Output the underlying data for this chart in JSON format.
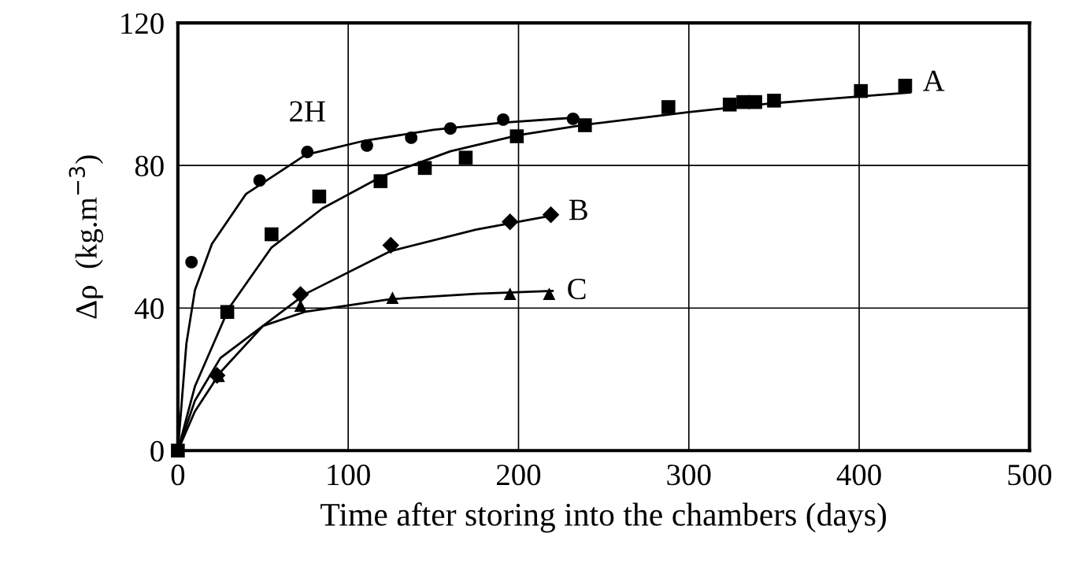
{
  "chart_data": {
    "type": "scatter",
    "xlabel": "Time after storing into the chambers (days)",
    "ylabel": "Δρ  (kg.m$^{−3}$)",
    "xlim": [
      0,
      500
    ],
    "ylim": [
      0,
      120
    ],
    "xticks": [
      0,
      100,
      200,
      300,
      400,
      500
    ],
    "yticks": [
      0,
      40,
      80,
      120
    ],
    "grid": true,
    "series": [
      {
        "marker": "circle",
        "color": "#000000",
        "x": [
          8,
          48,
          76,
          111,
          137,
          160,
          191,
          232
        ],
        "values": [
          52.9,
          75.8,
          83.8,
          85.6,
          87.8,
          90.4,
          92.9,
          93.1
        ]
      },
      {
        "marker": "square",
        "color": "#000000",
        "x": [
          0,
          29,
          55,
          83,
          119,
          145,
          169,
          199,
          239,
          288,
          324,
          332,
          339,
          350,
          401,
          427
        ],
        "values": [
          0,
          38.9,
          60.7,
          71.3,
          75.6,
          79.3,
          82.2,
          88.2,
          91.3,
          96.4,
          97.1,
          97.8,
          97.8,
          98.2,
          100.9,
          102.4
        ]
      },
      {
        "marker": "diamond",
        "color": "#000000",
        "x": [
          23,
          72,
          125,
          195,
          219
        ],
        "values": [
          21.1,
          43.8,
          57.6,
          64.2,
          66.2
        ]
      },
      {
        "marker": "triangle",
        "color": "#000000",
        "x": [
          24,
          72,
          126,
          195,
          218
        ],
        "values": [
          21,
          40.7,
          42.9,
          44,
          44
        ]
      },
      {
        "type": "line",
        "color": "#000000",
        "x": [
          0,
          5,
          10,
          20,
          40,
          75,
          110,
          150,
          190,
          235
        ],
        "values": [
          0,
          30,
          45,
          58,
          72,
          83,
          87,
          90,
          92,
          93.5
        ]
      },
      {
        "type": "line",
        "color": "#000000",
        "x": [
          0,
          10,
          30,
          55,
          85,
          120,
          160,
          200,
          240,
          300,
          350,
          430
        ],
        "values": [
          0,
          18,
          40,
          57,
          68,
          77,
          84,
          88.5,
          91.5,
          95,
          97.5,
          100.5
        ]
      },
      {
        "type": "line",
        "color": "#000000",
        "x": [
          0,
          10,
          25,
          50,
          75,
          125,
          175,
          220
        ],
        "values": [
          0,
          11,
          22,
          35,
          44,
          56,
          62,
          66
        ]
      },
      {
        "type": "line",
        "color": "#000000",
        "x": [
          0,
          10,
          25,
          50,
          75,
          125,
          175,
          220
        ],
        "values": [
          0,
          14,
          26,
          35,
          39,
          42.5,
          44,
          44.8
        ]
      }
    ],
    "annotations": [
      {
        "text": "2H",
        "x": 76,
        "y": 83.8
      },
      {
        "text": "A",
        "x": 427,
        "y": 102.4
      },
      {
        "text": "B",
        "x": 219,
        "y": 66.2
      },
      {
        "text": "C",
        "x": 218,
        "y": 44
      }
    ]
  }
}
